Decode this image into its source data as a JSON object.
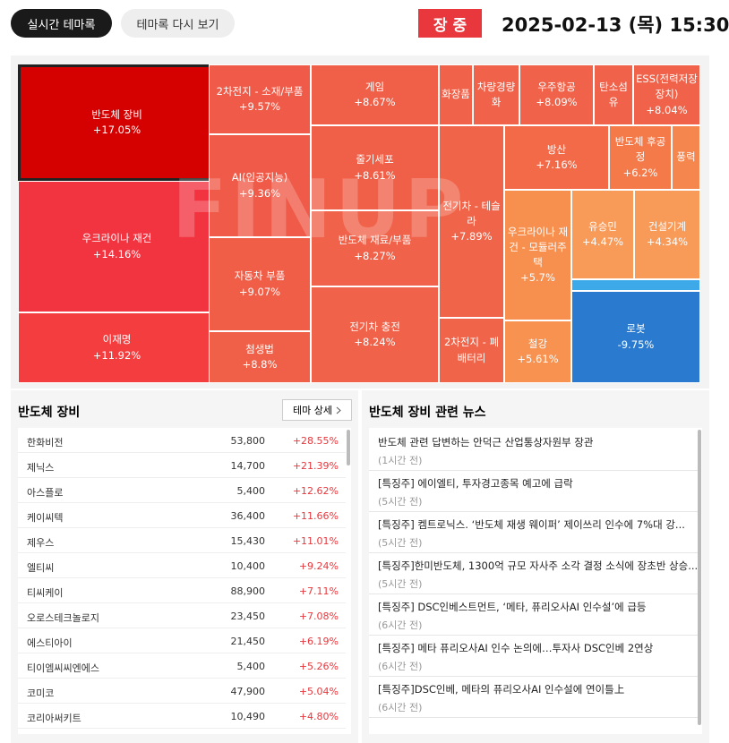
{
  "header": {
    "tabs": [
      "실시간 테마록",
      "테마록 다시 보기"
    ],
    "status": "장 중",
    "datetime": "2025-02-13 (목) 15:30"
  },
  "treemap": {
    "watermark": "FINUP",
    "tiles": [
      {
        "name": "반도체 장비",
        "change": "+17.05%",
        "color": "#d50000"
      },
      {
        "name": "우크라이나 재건",
        "change": "+14.16%",
        "color": "#f23340"
      },
      {
        "name": "이재명",
        "change": "+11.92%",
        "color": "#f43d3f"
      },
      {
        "name": "2차전지 - 소재/부품",
        "change": "+9.57%",
        "color": "#f05a48"
      },
      {
        "name": "AI(인공지능)",
        "change": "+9.36%",
        "color": "#f05a48"
      },
      {
        "name": "자동차 부품",
        "change": "+9.07%",
        "color": "#f05e48"
      },
      {
        "name": "첨생법",
        "change": "+8.8%",
        "color": "#f06048"
      },
      {
        "name": "게임",
        "change": "+8.67%",
        "color": "#f06048"
      },
      {
        "name": "줄기세포",
        "change": "+8.61%",
        "color": "#f06048"
      },
      {
        "name": "반도체 재료/부품",
        "change": "+8.27%",
        "color": "#f06249"
      },
      {
        "name": "전기차 충전",
        "change": "+8.24%",
        "color": "#f06249"
      },
      {
        "name": "화장품",
        "color": "#f06249"
      },
      {
        "name": "차량경량화",
        "color": "#f06249"
      },
      {
        "name": "우주항공",
        "change": "+8.09%",
        "color": "#f06249"
      },
      {
        "name": "탄소섬유",
        "color": "#f06249"
      },
      {
        "name": "ESS(전력저장장치)",
        "change": "+8.04%",
        "color": "#f06249"
      },
      {
        "name": "전기차 - 테슬라",
        "change": "+7.89%",
        "color": "#f06449"
      },
      {
        "name": "2차전지 - 폐배터리",
        "color": "#f06449"
      },
      {
        "name": "방산",
        "change": "+7.16%",
        "color": "#f26a48"
      },
      {
        "name": "반도체 후공정",
        "change": "+6.2%",
        "color": "#f47a4a"
      },
      {
        "name": "풍력",
        "color": "#f5874e"
      },
      {
        "name": "우크라이나 재건 - 모듈러주택",
        "change": "+5.7%",
        "color": "#f7904f"
      },
      {
        "name": "철강",
        "change": "+5.61%",
        "color": "#f79250"
      },
      {
        "name": "유승민",
        "change": "+4.47%",
        "color": "#f89a58"
      },
      {
        "name": "건설기계",
        "change": "+4.34%",
        "color": "#f89a58"
      },
      {
        "name": "로봇",
        "change": "-9.75%",
        "color": "#2a7bd0"
      }
    ]
  },
  "stocks": {
    "title": "반도체 장비",
    "button": "테마 상세",
    "rows": [
      [
        "한화비전",
        "53,800",
        "+28.55%"
      ],
      [
        "제닉스",
        "14,700",
        "+21.39%"
      ],
      [
        "아스플로",
        "5,400",
        "+12.62%"
      ],
      [
        "케이씨텍",
        "36,400",
        "+11.66%"
      ],
      [
        "제우스",
        "15,430",
        "+11.01%"
      ],
      [
        "엘티씨",
        "10,400",
        "+9.24%"
      ],
      [
        "티씨케이",
        "88,900",
        "+7.11%"
      ],
      [
        "오로스테크놀로지",
        "23,450",
        "+7.08%"
      ],
      [
        "에스티아이",
        "21,450",
        "+6.19%"
      ],
      [
        "티이엠씨씨엔에스",
        "5,400",
        "+5.26%"
      ],
      [
        "코미코",
        "47,900",
        "+5.04%"
      ],
      [
        "코리아써키트",
        "10,490",
        "+4.80%"
      ]
    ]
  },
  "news": {
    "title": "반도체 장비 관련 뉴스",
    "items": [
      [
        "반도체 관련 답변하는 안덕근 산업통상자원부 장관",
        "(1시간 전)"
      ],
      [
        "[특징주] 에이엘티, 투자경고종목 예고에 급락",
        "(5시간 전)"
      ],
      [
        "[특징주] 켐트로닉스. ‘반도체 재생 웨이퍼’ 제이쓰리 인수에 7%대 강...",
        "(5시간 전)"
      ],
      [
        "[특징주]한미반도체, 1300억 규모 자사주 소각 결정 소식에 장초반 상승...",
        "(5시간 전)"
      ],
      [
        "[특징주] DSC인베스트먼트, ‘메타, 퓨리오사AI 인수설’에 급등",
        "(6시간 전)"
      ],
      [
        "[특징주] 메타 퓨리오사AI 인수 논의에…투자사 DSC인베 2연상",
        "(6시간 전)"
      ],
      [
        "[특징주]DSC인베, 메타의 퓨리오사AI 인수설에 연이틀上",
        "(6시간 전)"
      ]
    ]
  }
}
